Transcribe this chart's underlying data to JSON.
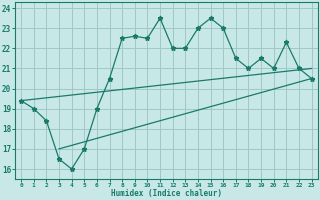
{
  "xlabel": "Humidex (Indice chaleur)",
  "ylabel": "",
  "bg_color": "#c8e8e8",
  "grid_color": "#a0c8c8",
  "line_color": "#1a7a6a",
  "xlim": [
    -0.5,
    23.5
  ],
  "ylim": [
    15.5,
    24.3
  ],
  "xticks": [
    0,
    1,
    2,
    3,
    4,
    5,
    6,
    7,
    8,
    9,
    10,
    11,
    12,
    13,
    14,
    15,
    16,
    17,
    18,
    19,
    20,
    21,
    22,
    23
  ],
  "yticks": [
    16,
    17,
    18,
    19,
    20,
    21,
    22,
    23,
    24
  ],
  "main_x": [
    0,
    1,
    2,
    3,
    4,
    5,
    6,
    7,
    8,
    9,
    10,
    11,
    12,
    13,
    14,
    15,
    16,
    17,
    18,
    19,
    20,
    21,
    22,
    23
  ],
  "main_y": [
    19.4,
    19.0,
    18.4,
    16.5,
    16.0,
    17.0,
    19.0,
    20.5,
    22.5,
    22.6,
    22.5,
    23.5,
    22.0,
    22.0,
    23.0,
    23.5,
    23.0,
    21.5,
    21.0,
    21.5,
    21.0,
    22.3,
    21.0,
    20.5
  ],
  "line2_x": [
    0,
    23
  ],
  "line2_y": [
    19.4,
    21.0
  ],
  "line3_x": [
    3,
    23
  ],
  "line3_y": [
    17.0,
    20.5
  ]
}
